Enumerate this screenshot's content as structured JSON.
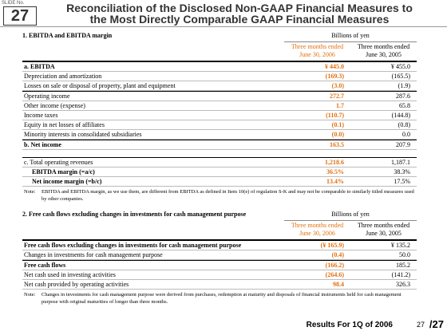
{
  "header": {
    "slide_label": "SLIDE No.",
    "slide_number": "27",
    "title": [
      "Reconciliation of the Disclosed Non-GAAP Financial Measures to",
      "the Most Directly Comparable GAAP Financial Measures"
    ]
  },
  "sections": [
    {
      "heading": "1. EBITDA and EBITDA margin",
      "unit": "Billions of yen",
      "columns": [
        [
          "Three months ended",
          "June 30, 2006"
        ],
        [
          "Three months ended",
          "June 30, 2005"
        ]
      ],
      "rows": [
        [
          "a. EBITDA",
          "¥ 445.0",
          "¥ 455.0"
        ],
        [
          "Depreciation and amortization",
          "(169.3)",
          "(165.5)"
        ],
        [
          "Losses on sale or disposal of property, plant and equipment",
          "(3.0)",
          "(1.9)"
        ],
        [
          "Operating income",
          "272.7",
          "287.6"
        ],
        [
          "Other income (expense)",
          "1.7",
          "65.8"
        ],
        [
          "Income taxes",
          "(110.7)",
          "(144.8)"
        ],
        [
          "Equity in net losses of affiliates",
          "(0.1)",
          "(0.8)"
        ],
        [
          "Minority interests in consolidated subsidiaries",
          "(0.0)",
          "0.0"
        ],
        [
          "b. Net income",
          "163.5",
          "207.9"
        ],
        [
          "c. Total operating revenues",
          "1,218.6",
          "1,187.1"
        ],
        [
          "EBITDA margin (=a/c)",
          "36.5%",
          "38.3%"
        ],
        [
          "Net income margin (=b/c)",
          "13.4%",
          "17.5%"
        ]
      ],
      "note_label": "Note:",
      "note": "EBITDA and EBITDA margin, as we use them, are different from EBITDA as defined in Item 10(e) of regulation S-K and may not be comparable to similarly titled measures used by other companies."
    },
    {
      "heading": "2. Free cash flows excluding changes in investments for cash management purpose",
      "unit": "Billions of yen",
      "columns": [
        [
          "Three months ended",
          "June 30, 2006"
        ],
        [
          "Three months ended",
          "June 30, 2005"
        ]
      ],
      "rows": [
        [
          "Free cash flows excluding changes in investments for cash management purpose",
          "(¥ 165.9)",
          "¥ 135.2"
        ],
        [
          "Changes in investments for cash management purpose",
          "(0.4)",
          "50.0"
        ],
        [
          "Free cash flows",
          "(166.2)",
          "185.2"
        ],
        [
          "Net cash used in investing activities",
          "(264.6)",
          "(141.2)"
        ],
        [
          "Net cash provided by operating activities",
          "98.4",
          "326.3"
        ]
      ],
      "note_label": "Note:",
      "note": "Changes in investments for cash management purpose were derived from purchases, redemption at maturity and disposals of financial instruments held for cash management purpose with original maturities of longer than three months."
    }
  ],
  "footer": {
    "text": "Results For 1Q of 2006",
    "page": "27",
    "total": "/27"
  }
}
